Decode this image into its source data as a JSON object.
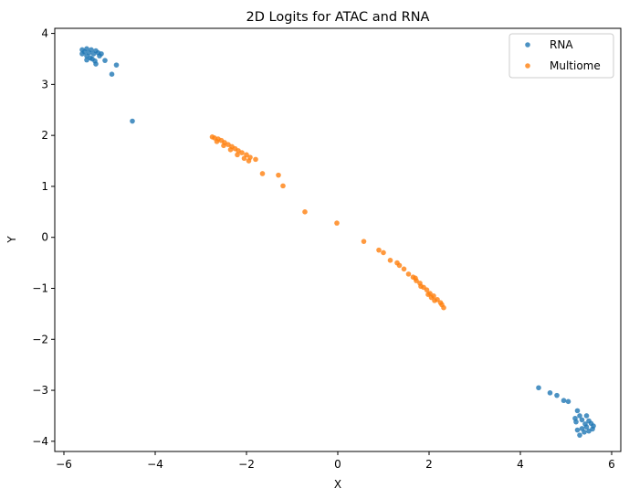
{
  "chart_data": {
    "type": "scatter",
    "title": "2D Logits for ATAC and RNA",
    "xlabel": "X",
    "ylabel": "Y",
    "xlim": [
      -6.2,
      6.2
    ],
    "ylim": [
      -4.2,
      4.1
    ],
    "xticks": [
      -6,
      -4,
      -2,
      0,
      2,
      4,
      6
    ],
    "yticks": [
      4,
      3,
      2,
      1,
      0,
      -1,
      -2,
      -3,
      -4
    ],
    "xtick_labels": [
      "−6",
      "−4",
      "−2",
      "0",
      "2",
      "4",
      "6"
    ],
    "ytick_labels": [
      "4",
      "3",
      "2",
      "1",
      "0",
      "−1",
      "−2",
      "−3",
      "−4"
    ],
    "grid": false,
    "legend_position": "top-right",
    "series": [
      {
        "name": "RNA",
        "color": "#1f77b4",
        "points": [
          [
            -5.6,
            3.68
          ],
          [
            -5.5,
            3.7
          ],
          [
            -5.4,
            3.68
          ],
          [
            -5.3,
            3.66
          ],
          [
            -5.25,
            3.62
          ],
          [
            -5.6,
            3.6
          ],
          [
            -5.55,
            3.64
          ],
          [
            -5.45,
            3.62
          ],
          [
            -5.35,
            3.6
          ],
          [
            -5.5,
            3.56
          ],
          [
            -5.42,
            3.52
          ],
          [
            -5.38,
            3.5
          ],
          [
            -5.32,
            3.46
          ],
          [
            -5.3,
            3.4
          ],
          [
            -5.5,
            3.48
          ],
          [
            -5.22,
            3.56
          ],
          [
            -5.18,
            3.6
          ],
          [
            -5.1,
            3.47
          ],
          [
            -4.85,
            3.38
          ],
          [
            -4.95,
            3.2
          ],
          [
            -4.5,
            2.28
          ],
          [
            4.4,
            -2.95
          ],
          [
            4.65,
            -3.05
          ],
          [
            4.8,
            -3.1
          ],
          [
            4.95,
            -3.2
          ],
          [
            5.05,
            -3.22
          ],
          [
            5.25,
            -3.4
          ],
          [
            5.3,
            -3.5
          ],
          [
            5.2,
            -3.55
          ],
          [
            5.35,
            -3.58
          ],
          [
            5.45,
            -3.5
          ],
          [
            5.5,
            -3.6
          ],
          [
            5.55,
            -3.65
          ],
          [
            5.6,
            -3.7
          ],
          [
            5.45,
            -3.72
          ],
          [
            5.35,
            -3.75
          ],
          [
            5.25,
            -3.78
          ],
          [
            5.4,
            -3.82
          ],
          [
            5.3,
            -3.88
          ],
          [
            5.5,
            -3.8
          ],
          [
            5.58,
            -3.76
          ],
          [
            5.42,
            -3.66
          ],
          [
            5.22,
            -3.62
          ]
        ]
      },
      {
        "name": "Multiome",
        "color": "#ff7f0e",
        "points": [
          [
            -2.75,
            1.97
          ],
          [
            -2.7,
            1.95
          ],
          [
            -2.62,
            1.93
          ],
          [
            -2.55,
            1.9
          ],
          [
            -2.48,
            1.86
          ],
          [
            -2.4,
            1.82
          ],
          [
            -2.32,
            1.78
          ],
          [
            -2.25,
            1.74
          ],
          [
            -2.18,
            1.7
          ],
          [
            -2.1,
            1.66
          ],
          [
            -2.0,
            1.62
          ],
          [
            -1.92,
            1.57
          ],
          [
            -2.65,
            1.88
          ],
          [
            -2.5,
            1.8
          ],
          [
            -2.35,
            1.72
          ],
          [
            -2.2,
            1.62
          ],
          [
            -2.05,
            1.55
          ],
          [
            -1.95,
            1.5
          ],
          [
            -1.8,
            1.53
          ],
          [
            -1.65,
            1.25
          ],
          [
            -1.3,
            1.22
          ],
          [
            -1.2,
            1.01
          ],
          [
            -0.72,
            0.5
          ],
          [
            -0.02,
            0.28
          ],
          [
            0.57,
            -0.08
          ],
          [
            0.9,
            -0.25
          ],
          [
            1.0,
            -0.3
          ],
          [
            1.15,
            -0.45
          ],
          [
            1.3,
            -0.5
          ],
          [
            1.35,
            -0.55
          ],
          [
            1.45,
            -0.62
          ],
          [
            1.55,
            -0.72
          ],
          [
            1.65,
            -0.78
          ],
          [
            1.72,
            -0.85
          ],
          [
            1.8,
            -0.9
          ],
          [
            1.88,
            -0.98
          ],
          [
            1.95,
            -1.03
          ],
          [
            2.02,
            -1.1
          ],
          [
            2.1,
            -1.15
          ],
          [
            2.18,
            -1.22
          ],
          [
            2.25,
            -1.28
          ],
          [
            2.32,
            -1.38
          ],
          [
            1.82,
            -0.96
          ],
          [
            1.98,
            -1.12
          ],
          [
            2.12,
            -1.24
          ],
          [
            2.28,
            -1.32
          ],
          [
            1.7,
            -0.8
          ],
          [
            2.05,
            -1.18
          ]
        ]
      }
    ]
  }
}
